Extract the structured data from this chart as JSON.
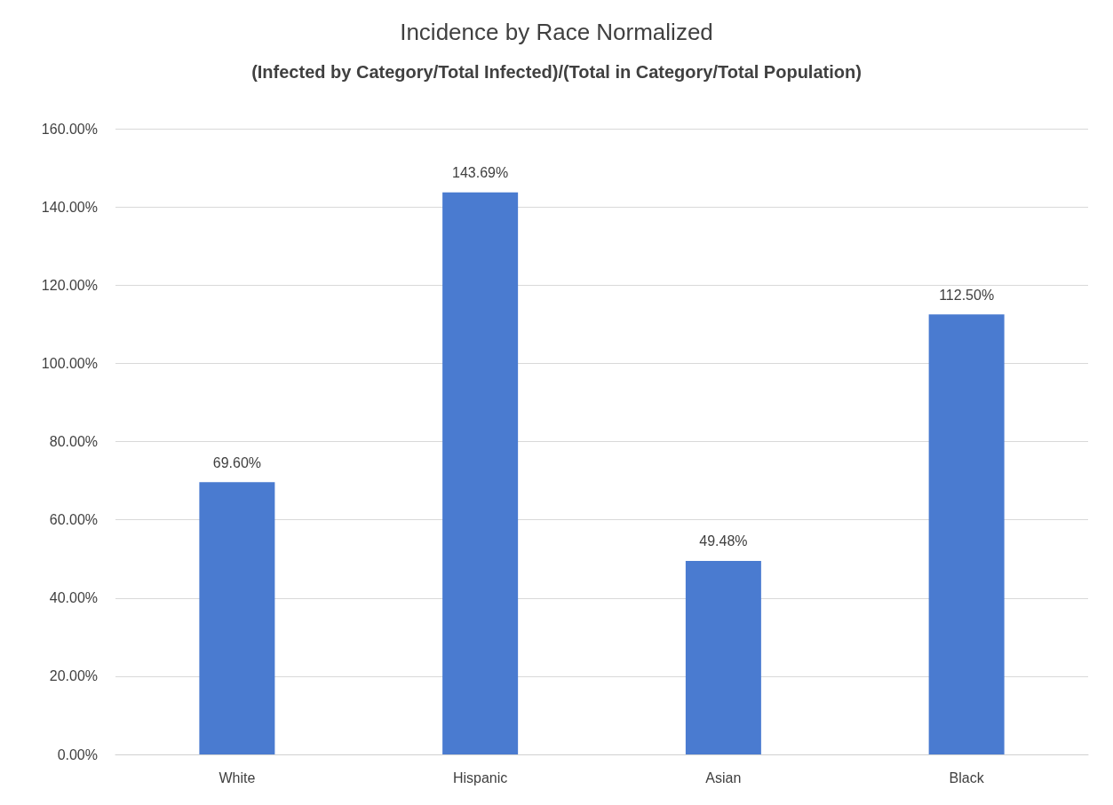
{
  "chart_data": {
    "type": "bar",
    "title": "Incidence by Race Normalized",
    "subtitle": "(Infected by Category/Total Infected)/(Total in Category/Total Population)",
    "categories": [
      "White",
      "Hispanic",
      "Asian",
      "Black"
    ],
    "values": [
      69.6,
      143.69,
      49.48,
      112.5
    ],
    "value_labels": [
      "69.60%",
      "143.69%",
      "49.48%",
      "112.50%"
    ],
    "color": "#4a7bd0",
    "ylim": [
      0,
      160
    ],
    "yticks": [
      {
        "value": 0,
        "label": "0.00%"
      },
      {
        "value": 20,
        "label": "20.00%"
      },
      {
        "value": 40,
        "label": "40.00%"
      },
      {
        "value": 60,
        "label": "60.00%"
      },
      {
        "value": 80,
        "label": "80.00%"
      },
      {
        "value": 100,
        "label": "100.00%"
      },
      {
        "value": 120,
        "label": "120.00%"
      },
      {
        "value": 140,
        "label": "140.00%"
      },
      {
        "value": 160,
        "label": "160.00%"
      }
    ],
    "grid": "y"
  }
}
